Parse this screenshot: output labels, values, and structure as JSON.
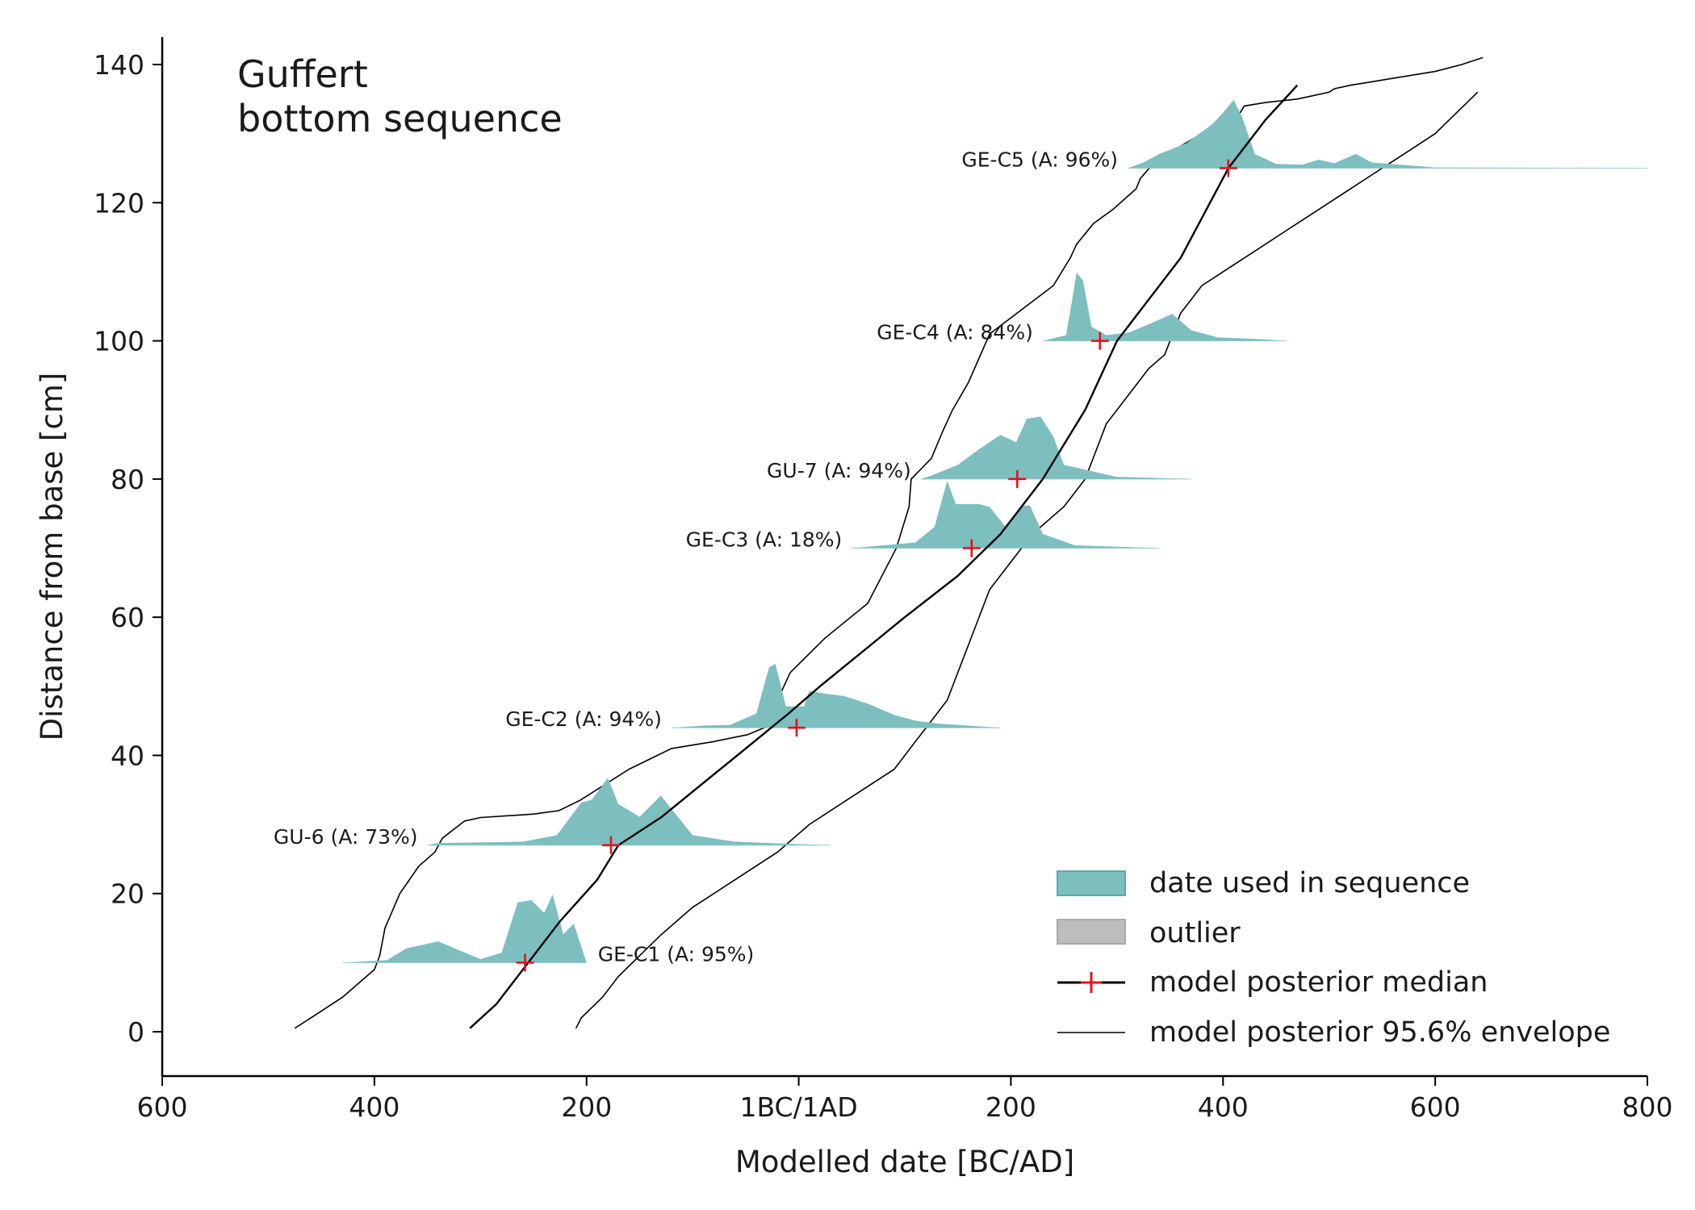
{
  "chart_data": {
    "type": "area",
    "title": "Guffert\nbottom sequence",
    "title_lines": [
      "Guffert",
      "bottom sequence"
    ],
    "xlabel": "Modelled date [BC/AD]",
    "ylabel": "Distance from base [cm]",
    "xlim": [
      -600,
      800
    ],
    "ylim": [
      -6,
      144
    ],
    "xticks": [
      {
        "value": -600,
        "label": "600"
      },
      {
        "value": -400,
        "label": "400"
      },
      {
        "value": -200,
        "label": "200"
      },
      {
        "value": 0,
        "label": "1BC/1AD"
      },
      {
        "value": 200,
        "label": "200"
      },
      {
        "value": 400,
        "label": "400"
      },
      {
        "value": 600,
        "label": "600"
      },
      {
        "value": 800,
        "label": "800"
      }
    ],
    "yticks": [
      0,
      20,
      40,
      60,
      80,
      100,
      120,
      140
    ],
    "grid": false,
    "legend_position": "bottom-right",
    "legend": [
      {
        "label": "date used in sequence",
        "kind": "fill",
        "color": "#7dbfbf"
      },
      {
        "label": "outlier",
        "kind": "fill",
        "color": "#bdbdbd"
      },
      {
        "label": "model posterior median",
        "kind": "median",
        "color": "#e8101a"
      },
      {
        "label": "model posterior 95.6% envelope",
        "kind": "line",
        "color": "#000000"
      }
    ],
    "samples": [
      {
        "name": "GE-C1",
        "label": "GE-C1  (A: 95%)",
        "depth": 10,
        "median": -258,
        "label_side": "right",
        "range": [
          -430,
          -200
        ],
        "peaks": [
          [
            -388,
            3.5
          ],
          [
            -370,
            20
          ],
          [
            -340,
            30
          ],
          [
            -300,
            5
          ],
          [
            -280,
            14
          ],
          [
            -265,
            85
          ],
          [
            -252,
            88
          ],
          [
            -240,
            70
          ],
          [
            -232,
            96
          ],
          [
            -222,
            40
          ],
          [
            -212,
            55
          ]
        ]
      },
      {
        "name": "GU-6",
        "label": "GU-6  (A: 73%)",
        "depth": 27,
        "median": -177,
        "label_side": "left",
        "range": [
          -350,
          30
        ],
        "peaks": [
          [
            -340,
            3
          ],
          [
            -300,
            4
          ],
          [
            -260,
            5
          ],
          [
            -228,
            14
          ],
          [
            -205,
            60
          ],
          [
            -195,
            64
          ],
          [
            -180,
            95
          ],
          [
            -170,
            58
          ],
          [
            -150,
            40
          ],
          [
            -130,
            70
          ],
          [
            -100,
            14
          ],
          [
            -60,
            5
          ],
          [
            -10,
            2
          ]
        ]
      },
      {
        "name": "GE-C2",
        "label": "GE-C2  (A: 94%)",
        "depth": 44,
        "median": -2,
        "label_side": "left",
        "range": [
          -120,
          190
        ],
        "peaks": [
          [
            -90,
            3
          ],
          [
            -65,
            4
          ],
          [
            -40,
            20
          ],
          [
            -28,
            85
          ],
          [
            -22,
            90
          ],
          [
            -12,
            30
          ],
          [
            5,
            30
          ],
          [
            10,
            52
          ],
          [
            25,
            48
          ],
          [
            42,
            45
          ],
          [
            65,
            34
          ],
          [
            90,
            18
          ],
          [
            110,
            10
          ],
          [
            130,
            6
          ],
          [
            160,
            3
          ]
        ]
      },
      {
        "name": "GE-C3",
        "label": "GE-C3  (A: 18%)",
        "depth": 70,
        "median": 163,
        "label_side": "left",
        "range": [
          50,
          340
        ],
        "peaks": [
          [
            80,
            4
          ],
          [
            110,
            8
          ],
          [
            128,
            30
          ],
          [
            140,
            95
          ],
          [
            148,
            62
          ],
          [
            170,
            62
          ],
          [
            180,
            58
          ],
          [
            195,
            30
          ],
          [
            210,
            60
          ],
          [
            218,
            60
          ],
          [
            230,
            20
          ],
          [
            260,
            4
          ],
          [
            300,
            2
          ]
        ]
      },
      {
        "name": "GU-7",
        "label": "GU-7  (A: 94%)",
        "depth": 80,
        "median": 206,
        "label_side": "left",
        "range": [
          115,
          370
        ],
        "peaks": [
          [
            125,
            5
          ],
          [
            150,
            20
          ],
          [
            170,
            42
          ],
          [
            190,
            62
          ],
          [
            205,
            52
          ],
          [
            215,
            85
          ],
          [
            228,
            88
          ],
          [
            240,
            60
          ],
          [
            250,
            20
          ],
          [
            300,
            3
          ],
          [
            330,
            2
          ]
        ]
      },
      {
        "name": "GE-C4",
        "label": "GE-C4  (A: 84%)",
        "depth": 100,
        "median": 284,
        "label_side": "left",
        "range": [
          230,
          460
        ],
        "peaks": [
          [
            252,
            8
          ],
          [
            258,
            60
          ],
          [
            262,
            96
          ],
          [
            268,
            85
          ],
          [
            276,
            20
          ],
          [
            290,
            8
          ],
          [
            312,
            12
          ],
          [
            340,
            30
          ],
          [
            352,
            38
          ],
          [
            370,
            15
          ],
          [
            395,
            5
          ],
          [
            440,
            2
          ]
        ]
      },
      {
        "name": "GE-C5",
        "label": "GE-C5  (A: 96%)",
        "depth": 125,
        "median": 405,
        "label_side": "left",
        "range": [
          310,
          800
        ],
        "peaks": [
          [
            325,
            8
          ],
          [
            340,
            20
          ],
          [
            365,
            35
          ],
          [
            390,
            62
          ],
          [
            400,
            78
          ],
          [
            410,
            96
          ],
          [
            418,
            72
          ],
          [
            430,
            20
          ],
          [
            450,
            6
          ],
          [
            475,
            5
          ],
          [
            490,
            12
          ],
          [
            505,
            7
          ],
          [
            525,
            20
          ],
          [
            540,
            8
          ],
          [
            600,
            1
          ]
        ]
      }
    ],
    "median_curve": {
      "x": [
        -310,
        -285,
        -255,
        -225,
        -190,
        -170,
        -130,
        -90,
        -50,
        -10,
        20,
        60,
        100,
        150,
        190,
        230,
        270,
        300,
        330,
        360,
        405,
        440,
        470
      ],
      "y": [
        0.5,
        4,
        10,
        16,
        22,
        27,
        31,
        36,
        41,
        46,
        50,
        55,
        60,
        66,
        72,
        80,
        90,
        100,
        106,
        112,
        125,
        132,
        137
      ]
    },
    "envelope_lower": {
      "x": [
        -475,
        -460,
        -430,
        -400,
        -395,
        -390,
        -376,
        -358,
        -343,
        -336,
        -315,
        -300,
        -250,
        -226,
        -206,
        -160,
        -120,
        -80,
        -48,
        -25,
        -20,
        -8,
        25,
        65,
        92,
        104,
        106,
        125,
        136,
        145,
        160,
        180,
        240,
        256,
        262,
        278,
        296,
        318,
        322,
        336,
        358,
        380,
        400,
        404,
        416,
        420,
        440,
        470,
        500,
        505,
        520,
        540,
        560,
        580,
        600,
        625,
        645
      ],
      "y": [
        0.5,
        2,
        5,
        9,
        11,
        15,
        20,
        24,
        26,
        28,
        30.5,
        31,
        31.5,
        32,
        33.5,
        38,
        41,
        42,
        43,
        44.5,
        48,
        52,
        57,
        62,
        70,
        76,
        80,
        83,
        87,
        90,
        94,
        101,
        108,
        112,
        114,
        117,
        119,
        122,
        123.5,
        126,
        128,
        130,
        131,
        132,
        133,
        134,
        134.5,
        135,
        136,
        136.5,
        137,
        137.5,
        138,
        138.5,
        139,
        140,
        141
      ]
    },
    "envelope_upper": {
      "x": [
        -210,
        -205,
        -185,
        -170,
        -150,
        -130,
        -100,
        -60,
        -20,
        10,
        50,
        90,
        110,
        120,
        140,
        150,
        160,
        170,
        180,
        200,
        220,
        250,
        260,
        270,
        280,
        290,
        310,
        330,
        345,
        350,
        355,
        360,
        370,
        380,
        400,
        420,
        440,
        460,
        480,
        500,
        520,
        540,
        560,
        580,
        600,
        620,
        640
      ],
      "y": [
        0.5,
        2,
        5,
        8,
        11,
        14,
        18,
        22,
        26,
        30,
        34,
        38,
        42,
        44,
        48,
        52,
        56,
        60,
        64,
        68,
        72,
        76,
        78,
        80,
        84,
        88,
        92,
        96,
        98,
        100,
        102,
        104,
        106,
        108,
        110,
        112,
        114,
        116,
        118,
        120,
        122,
        124,
        126,
        128,
        130,
        133,
        136
      ]
    }
  }
}
